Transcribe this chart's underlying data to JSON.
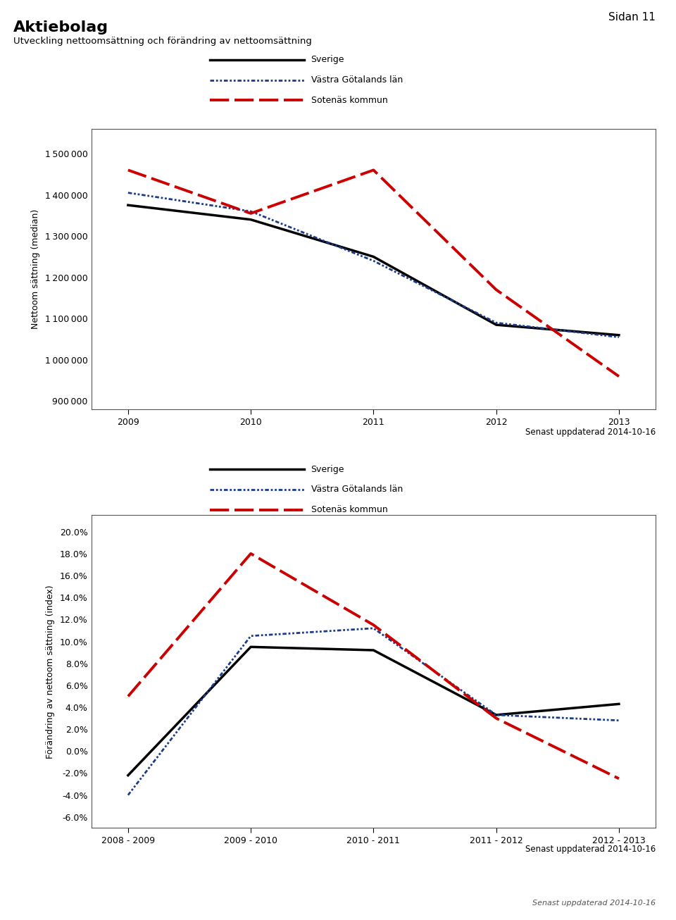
{
  "page_label": "Sidan 11",
  "title": "Aktiebolag",
  "subtitle": "Utveckling nettoomsättning och förändring av nettoom sättning",
  "subtitle2": "Utveckling nettoom sättning och förändring av nettoom sättning",
  "updated": "Senast uppdaterad 2014-10-16",
  "chart1": {
    "ylabel": "Nettoom sättning (median)",
    "x": [
      2009,
      2010,
      2011,
      2012,
      2013
    ],
    "sverige": [
      1375000,
      1340000,
      1250000,
      1085000,
      1060000
    ],
    "vastra": [
      1405000,
      1360000,
      1240000,
      1090000,
      1055000
    ],
    "sotenas": [
      1460000,
      1355000,
      1460000,
      1170000,
      960000
    ],
    "ylim": [
      880000,
      1560000
    ],
    "yticks": [
      900000,
      1000000,
      1100000,
      1200000,
      1300000,
      1400000,
      1500000
    ]
  },
  "chart2": {
    "ylabel": "Förändring av nettoom sättning (index)",
    "x_labels": [
      "2008 - 2009",
      "2009 - 2010",
      "2010 - 2011",
      "2011 - 2012",
      "2012 - 2013"
    ],
    "sverige": [
      -0.022,
      0.095,
      0.092,
      0.033,
      0.043
    ],
    "vastra": [
      -0.04,
      0.105,
      0.112,
      0.033,
      0.028
    ],
    "sotenas": [
      0.05,
      0.18,
      0.115,
      0.03,
      -0.025
    ],
    "ylim": [
      -0.07,
      0.215
    ],
    "yticks": [
      -0.06,
      -0.04,
      -0.02,
      0.0,
      0.02,
      0.04,
      0.06,
      0.08,
      0.1,
      0.12,
      0.14,
      0.16,
      0.18,
      0.2
    ]
  },
  "legend_labels": [
    "Sverige",
    "Västra Götalands län",
    "Sotenäs kommun"
  ],
  "color_sverige": "#000000",
  "color_vastra": "#1a3a8a",
  "color_sotenas": "#cc0000",
  "plot_bg": "#ffffff"
}
